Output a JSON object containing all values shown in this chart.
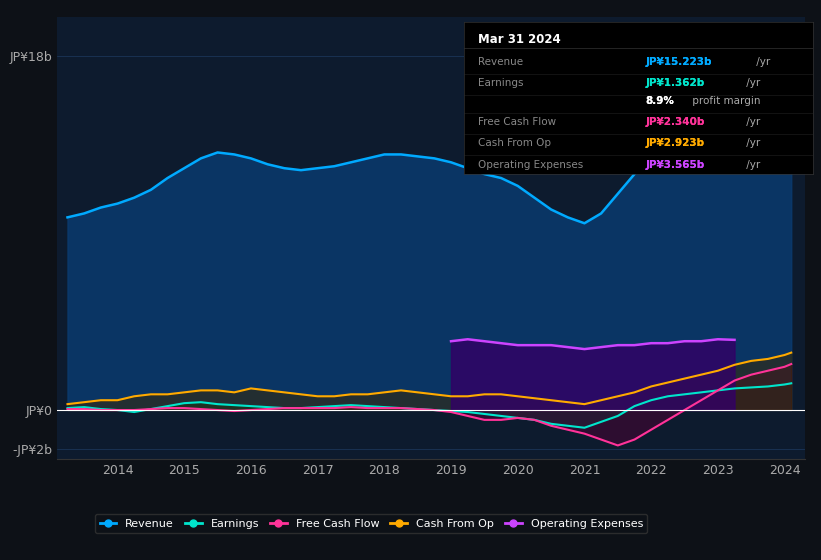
{
  "bg_color": "#0d1117",
  "chart_bg": "#0d1b2e",
  "grid_color": "#1e3a5f",
  "zero_line_color": "#ffffff",
  "title_box": {
    "date": "Mar 31 2024",
    "rows": [
      {
        "label": "Revenue",
        "value": "JP¥15.223b",
        "suffix": " /yr",
        "value_color": "#00aaff"
      },
      {
        "label": "Earnings",
        "value": "JP¥1.362b",
        "suffix": " /yr",
        "value_color": "#00e5cc"
      },
      {
        "label": "",
        "value": "8.9%",
        "suffix": " profit margin",
        "value_color": "#ffffff"
      },
      {
        "label": "Free Cash Flow",
        "value": "JP¥2.340b",
        "suffix": " /yr",
        "value_color": "#ff3399"
      },
      {
        "label": "Cash From Op",
        "value": "JP¥2.923b",
        "suffix": " /yr",
        "value_color": "#ffaa00"
      },
      {
        "label": "Operating Expenses",
        "value": "JP¥3.565b",
        "suffix": " /yr",
        "value_color": "#cc44ff"
      }
    ],
    "bg": "#000000",
    "label_color": "#888888",
    "border_color": "#333333"
  },
  "years": [
    2013.25,
    2013.5,
    2013.75,
    2014.0,
    2014.25,
    2014.5,
    2014.75,
    2015.0,
    2015.25,
    2015.5,
    2015.75,
    2016.0,
    2016.25,
    2016.5,
    2016.75,
    2017.0,
    2017.25,
    2017.5,
    2017.75,
    2018.0,
    2018.25,
    2018.5,
    2018.75,
    2019.0,
    2019.25,
    2019.5,
    2019.75,
    2020.0,
    2020.25,
    2020.5,
    2020.75,
    2021.0,
    2021.25,
    2021.5,
    2021.75,
    2022.0,
    2022.25,
    2022.5,
    2022.75,
    2023.0,
    2023.25,
    2023.5,
    2023.75,
    2024.0,
    2024.1
  ],
  "revenue": [
    9.8,
    10.0,
    10.3,
    10.5,
    10.8,
    11.2,
    11.8,
    12.3,
    12.8,
    13.1,
    13.0,
    12.8,
    12.5,
    12.3,
    12.2,
    12.3,
    12.4,
    12.6,
    12.8,
    13.0,
    13.0,
    12.9,
    12.8,
    12.6,
    12.3,
    12.0,
    11.8,
    11.4,
    10.8,
    10.2,
    9.8,
    9.5,
    10.0,
    11.0,
    12.0,
    13.0,
    13.5,
    14.0,
    14.8,
    15.5,
    16.5,
    16.8,
    16.5,
    15.8,
    15.2
  ],
  "earnings": [
    0.1,
    0.15,
    0.05,
    0.0,
    -0.1,
    0.05,
    0.2,
    0.35,
    0.4,
    0.3,
    0.25,
    0.2,
    0.15,
    0.1,
    0.1,
    0.15,
    0.2,
    0.25,
    0.2,
    0.15,
    0.1,
    0.05,
    0.0,
    -0.05,
    -0.1,
    -0.2,
    -0.3,
    -0.4,
    -0.5,
    -0.7,
    -0.8,
    -0.9,
    -0.6,
    -0.3,
    0.2,
    0.5,
    0.7,
    0.8,
    0.9,
    1.0,
    1.1,
    1.15,
    1.2,
    1.3,
    1.36
  ],
  "free_cash_flow": [
    0.05,
    0.05,
    0.0,
    0.0,
    0.0,
    0.05,
    0.1,
    0.1,
    0.05,
    0.0,
    -0.05,
    0.0,
    0.05,
    0.1,
    0.1,
    0.1,
    0.1,
    0.15,
    0.1,
    0.1,
    0.1,
    0.05,
    0.0,
    -0.1,
    -0.3,
    -0.5,
    -0.5,
    -0.4,
    -0.5,
    -0.8,
    -1.0,
    -1.2,
    -1.5,
    -1.8,
    -1.5,
    -1.0,
    -0.5,
    0.0,
    0.5,
    1.0,
    1.5,
    1.8,
    2.0,
    2.2,
    2.34
  ],
  "cash_from_op": [
    0.3,
    0.4,
    0.5,
    0.5,
    0.7,
    0.8,
    0.8,
    0.9,
    1.0,
    1.0,
    0.9,
    1.1,
    1.0,
    0.9,
    0.8,
    0.7,
    0.7,
    0.8,
    0.8,
    0.9,
    1.0,
    0.9,
    0.8,
    0.7,
    0.7,
    0.8,
    0.8,
    0.7,
    0.6,
    0.5,
    0.4,
    0.3,
    0.5,
    0.7,
    0.9,
    1.2,
    1.4,
    1.6,
    1.8,
    2.0,
    2.3,
    2.5,
    2.6,
    2.8,
    2.92
  ],
  "op_expenses_x_start": 2019.0,
  "op_expenses": [
    3.5,
    3.6,
    3.5,
    3.4,
    3.3,
    3.3,
    3.3,
    3.2,
    3.1,
    3.2,
    3.3,
    3.3,
    3.4,
    3.4,
    3.5,
    3.5,
    3.6,
    3.57
  ],
  "revenue_color": "#00aaff",
  "revenue_fill": "#0a3a6e",
  "earnings_color": "#00e5cc",
  "earnings_fill": "#003d38",
  "free_cash_flow_color": "#ff3399",
  "free_cash_flow_fill": "#4d0033",
  "cash_from_op_color": "#ffaa00",
  "cash_from_op_fill": "#3d2900",
  "op_expenses_color": "#cc44ff",
  "op_expenses_fill": "#330066",
  "ylim": [
    -2.5,
    20
  ],
  "yticks": [
    18,
    0,
    -2
  ],
  "ytick_labels": [
    "JP¥18b",
    "JP¥0",
    "-JP¥2b"
  ],
  "xtick_years": [
    2014,
    2015,
    2016,
    2017,
    2018,
    2019,
    2020,
    2021,
    2022,
    2023,
    2024
  ],
  "legend": [
    {
      "label": "Revenue",
      "color": "#00aaff"
    },
    {
      "label": "Earnings",
      "color": "#00e5cc"
    },
    {
      "label": "Free Cash Flow",
      "color": "#ff3399"
    },
    {
      "label": "Cash From Op",
      "color": "#ffaa00"
    },
    {
      "label": "Operating Expenses",
      "color": "#cc44ff"
    }
  ]
}
